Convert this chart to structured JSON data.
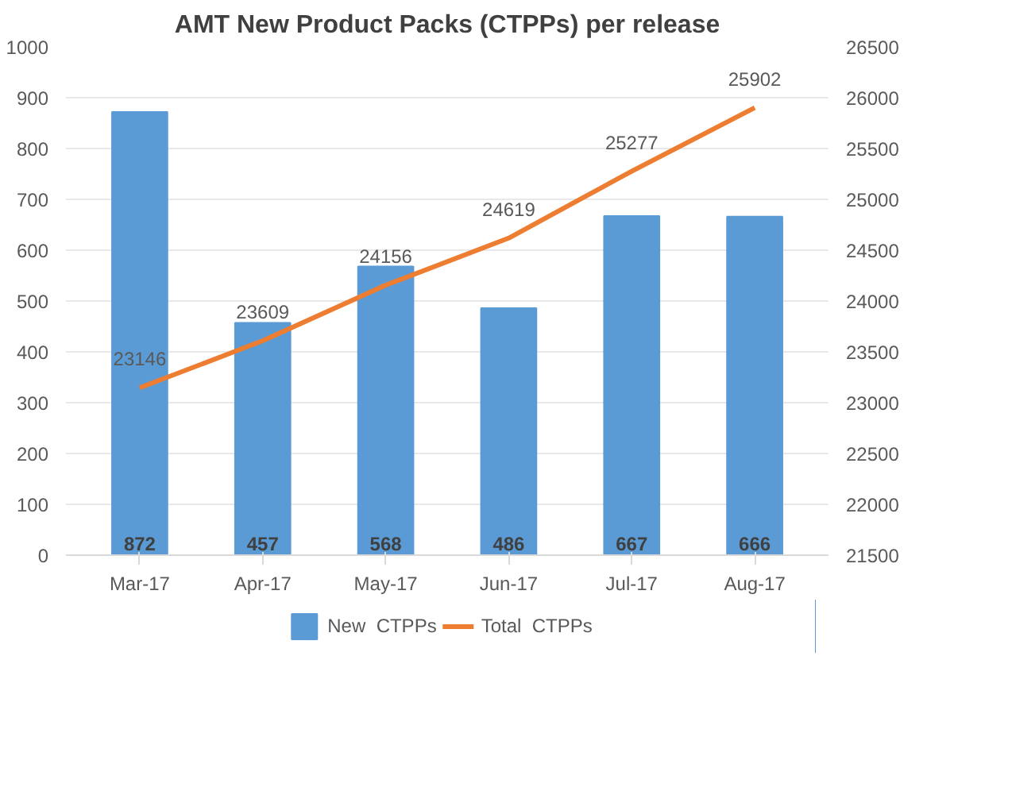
{
  "chart_data": {
    "type": "bar",
    "title": "AMT New Product Packs (CTPPs) per release",
    "categories": [
      "Mar-17",
      "Apr-17",
      "May-17",
      "Jun-17",
      "Jul-17",
      "Aug-17"
    ],
    "series": [
      {
        "name": "New  CTPPs",
        "color": "#5b9bd5",
        "values": [
          872,
          457,
          568,
          486,
          667,
          666
        ]
      },
      {
        "name": "Total  CTPPs",
        "color": "#ed7d31",
        "type": "line",
        "axis": "y2",
        "values": [
          23146,
          23609,
          24156,
          24619,
          25277,
          25902
        ]
      }
    ],
    "ylim": [
      0,
      1000
    ],
    "yticks": [
      0,
      100,
      200,
      300,
      400,
      500,
      600,
      700,
      800,
      900,
      1000
    ],
    "y2lim": [
      21500,
      26500
    ],
    "y2ticks": [
      21500,
      22000,
      22500,
      23000,
      23500,
      24000,
      24500,
      25000,
      25500,
      26000,
      26500
    ],
    "grid": "y",
    "legend": "bottom",
    "data_labels": true
  }
}
